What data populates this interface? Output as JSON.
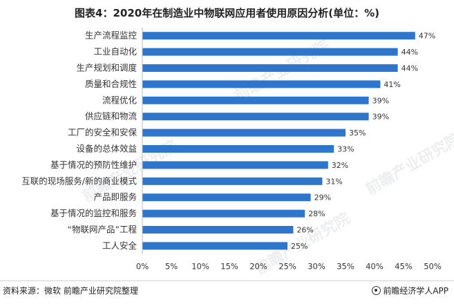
{
  "title": "图表4：2020年在制造业中物联网应用者使用原因分析(单位：%)",
  "source": "资料来源：微软 前瞻产业研究院整理",
  "app_credit": "前瞻经济学人APP",
  "watermark": "前瞻产业研究院",
  "colors": {
    "bar": "#2E75CC",
    "axis": "#bbbbbb",
    "text": "#333333"
  },
  "chart_data": {
    "type": "bar",
    "orientation": "horizontal",
    "title": "图表4：2020年在制造业中物联网应用者使用原因分析(单位：%)",
    "xlabel": "",
    "ylabel": "",
    "xlim": [
      0,
      50
    ],
    "xticks": [
      "0%",
      "5%",
      "10%",
      "15%",
      "20%",
      "25%",
      "30%",
      "35%",
      "40%",
      "45%",
      "50%"
    ],
    "grid": false,
    "categories": [
      "生产流程监控",
      "工业自动化",
      "生产规划和调度",
      "质量和合规性",
      "流程优化",
      "供应链和物流",
      "工厂的安全和安保",
      "设备的总体效益",
      "基于情况的预防性维护",
      "互联的现场服务/新的商业模式",
      "产品即服务",
      "基于情况的监控和服务",
      "“物联网产品”工程",
      "工人安全"
    ],
    "values": [
      47,
      44,
      44,
      41,
      39,
      39,
      35,
      33,
      32,
      31,
      29,
      28,
      26,
      25
    ],
    "value_labels": [
      "47%",
      "44%",
      "44%",
      "41%",
      "39%",
      "39%",
      "35%",
      "33%",
      "32%",
      "31%",
      "29%",
      "28%",
      "26%",
      "25%"
    ]
  }
}
